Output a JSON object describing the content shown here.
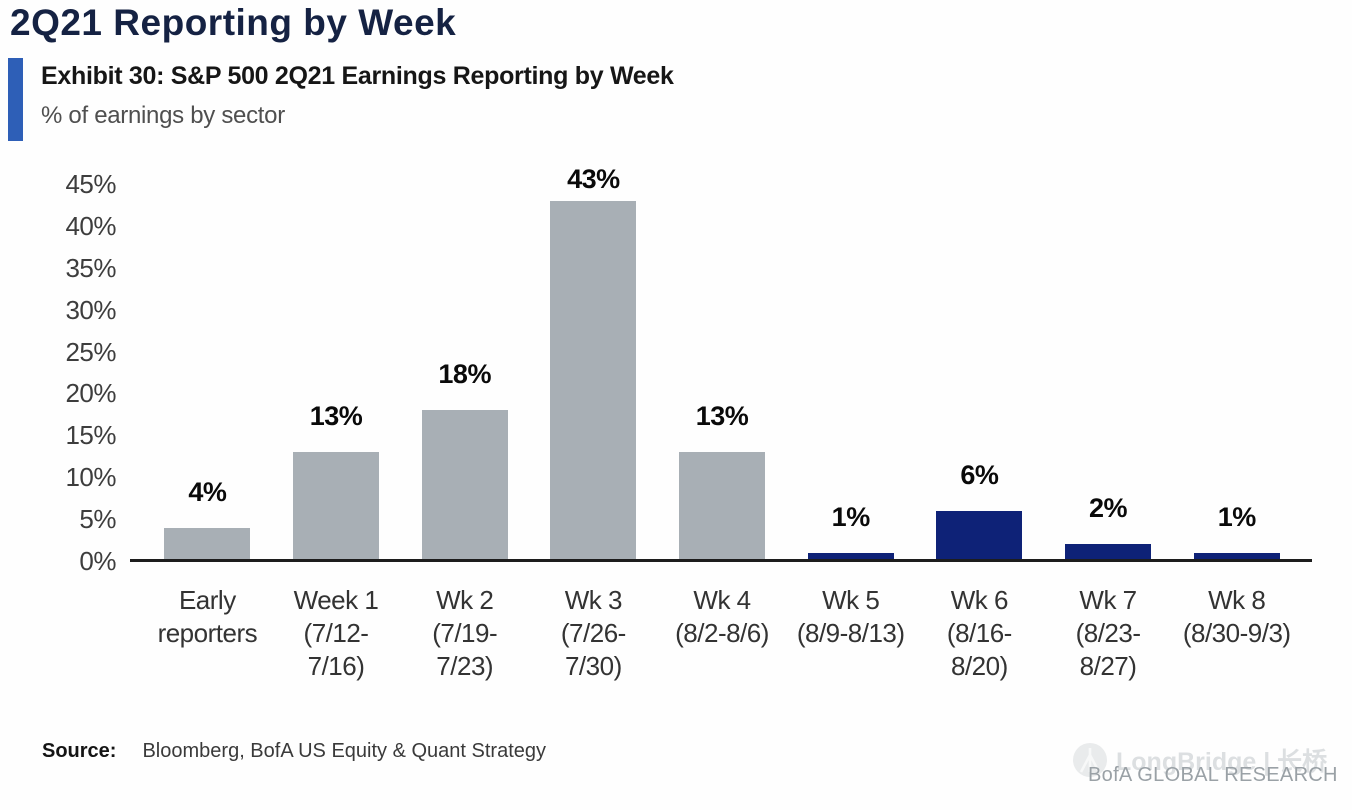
{
  "page": {
    "title": "2Q21 Reporting by Week",
    "exhibit_title": "Exhibit 30: S&P 500 2Q21 Earnings Reporting by Week",
    "exhibit_subtitle": "% of earnings by sector",
    "source_label": "Source:",
    "source_text": "Bloomberg, BofA US Equity & Quant Strategy",
    "footer_brand": "BofA GLOBAL RESEARCH",
    "watermark": "LongBridge | 长桥"
  },
  "colors": {
    "bg": "#fefefe",
    "title_navy": "#152243",
    "accent_blue": "#2e5fb7",
    "exhibit_text": "#161616",
    "subtitle_gray": "#4f4f4f",
    "bar_gray": "#a8afb5",
    "bar_navy": "#0e2277",
    "axis_line": "#1d1d1d",
    "tick_text": "#3d3d3d",
    "label_text": "#333333",
    "value_text": "#0a0a0a",
    "watermark_gray": "#dcdfe1",
    "brand_gray": "#9aa1a6"
  },
  "icons": {
    "watermark_logo": "longbridge-bridge-icon"
  },
  "chart_data": {
    "type": "bar",
    "title": "Exhibit 30: S&P 500 2Q21 Earnings Reporting by Week",
    "subtitle": "% of earnings by sector",
    "xlabel": "",
    "ylabel": "% of earnings by sector",
    "ylim": [
      0,
      45
    ],
    "grid": false,
    "legend": false,
    "categories": [
      "Early reporters",
      "Week 1 (7/12-7/16)",
      "Wk 2 (7/19-7/23)",
      "Wk 3 (7/26-7/30)",
      "Wk 4 (8/2-8/6)",
      "Wk 5 (8/9-8/13)",
      "Wk 6 (8/16-8/20)",
      "Wk 7 (8/23-8/27)",
      "Wk 8 (8/30-9/3)"
    ],
    "values": [
      4,
      13,
      18,
      43,
      13,
      1,
      6,
      2,
      1
    ],
    "value_labels": [
      "4%",
      "13%",
      "18%",
      "43%",
      "13%",
      "1%",
      "6%",
      "2%",
      "1%"
    ],
    "yticks": [
      {
        "label": "45%",
        "value": 45
      },
      {
        "label": "40%",
        "value": 40
      },
      {
        "label": "35%",
        "value": 35
      },
      {
        "label": "30%",
        "value": 30
      },
      {
        "label": "25%",
        "value": 25
      },
      {
        "label": "20%",
        "value": 20
      },
      {
        "label": "15%",
        "value": 15
      },
      {
        "label": "10%",
        "value": 10
      },
      {
        "label": "5%",
        "value": 5
      },
      {
        "label": "0%",
        "value": 0
      }
    ],
    "bars": [
      {
        "name": "early-reporters",
        "label_lines": [
          "Early",
          "reporters"
        ],
        "value": 4,
        "value_label": "4%",
        "color_key": "gray"
      },
      {
        "name": "week-1",
        "label_lines": [
          "Week 1",
          "(7/12-",
          "7/16)"
        ],
        "value": 13,
        "value_label": "13%",
        "color_key": "gray"
      },
      {
        "name": "wk-2",
        "label_lines": [
          "Wk 2",
          "(7/19-",
          "7/23)"
        ],
        "value": 18,
        "value_label": "18%",
        "color_key": "gray"
      },
      {
        "name": "wk-3",
        "label_lines": [
          "Wk 3",
          "(7/26-",
          "7/30)"
        ],
        "value": 43,
        "value_label": "43%",
        "color_key": "gray"
      },
      {
        "name": "wk-4",
        "label_lines": [
          "Wk 4",
          "(8/2-8/6)"
        ],
        "value": 13,
        "value_label": "13%",
        "color_key": "gray"
      },
      {
        "name": "wk-5",
        "label_lines": [
          "Wk 5",
          "(8/9-8/13)"
        ],
        "value": 1,
        "value_label": "1%",
        "color_key": "navy"
      },
      {
        "name": "wk-6",
        "label_lines": [
          "Wk 6",
          "(8/16-",
          "8/20)"
        ],
        "value": 6,
        "value_label": "6%",
        "color_key": "navy"
      },
      {
        "name": "wk-7",
        "label_lines": [
          "Wk 7",
          "(8/23-",
          "8/27)"
        ],
        "value": 2,
        "value_label": "2%",
        "color_key": "navy"
      },
      {
        "name": "wk-8",
        "label_lines": [
          "Wk 8",
          "(8/30-9/3)"
        ],
        "value": 1,
        "value_label": "1%",
        "color_key": "navy"
      }
    ]
  }
}
